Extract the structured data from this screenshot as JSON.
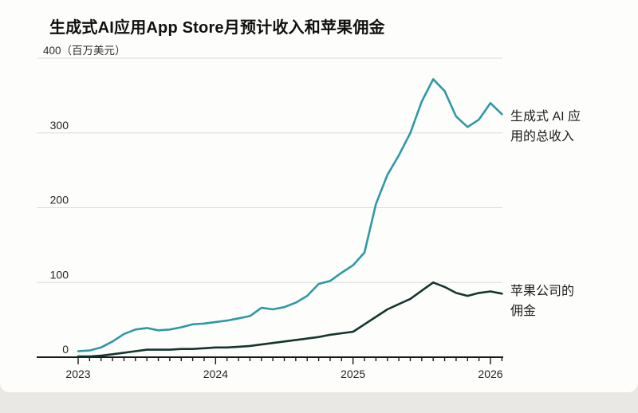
{
  "title": "生成式AI应用App Store月预计收入和苹果佣金",
  "y_axis_top_label": "400（百万美元）",
  "annotations": {
    "revenue_line1": "生成式 AI 应",
    "revenue_line2": "用的总收入",
    "commission_line1": "苹果公司的",
    "commission_line2": "佣金"
  },
  "colors": {
    "revenue": "#2f99a3",
    "commission": "#14352f",
    "grid": "#dcdcd9",
    "axis": "#191919",
    "tick_text": "#262626"
  },
  "chart_data": {
    "type": "line",
    "title": "生成式AI应用App Store月预计收入和苹果佣金",
    "unit": "百万美元",
    "ylim": [
      0,
      400
    ],
    "grid": true,
    "legend_position": "right-annotations",
    "y_gridlines": [
      100,
      200,
      300,
      400
    ],
    "y_tick_labels": [
      0,
      100,
      200,
      300
    ],
    "x": [
      "2023-01",
      "2023-02",
      "2023-03",
      "2023-04",
      "2023-05",
      "2023-06",
      "2023-07",
      "2023-08",
      "2023-09",
      "2023-10",
      "2023-11",
      "2023-12",
      "2024-01",
      "2024-02",
      "2024-03",
      "2024-04",
      "2024-05",
      "2024-06",
      "2024-07",
      "2024-08",
      "2024-09",
      "2024-10",
      "2024-11",
      "2024-12",
      "2025-01",
      "2025-02",
      "2025-03",
      "2025-04",
      "2025-05",
      "2025-06",
      "2025-07",
      "2025-08",
      "2025-09",
      "2025-10",
      "2025-11",
      "2025-12",
      "2026-01",
      "2026-02"
    ],
    "x_year_ticks": [
      {
        "label": "2023",
        "index": 0
      },
      {
        "label": "2024",
        "index": 12
      },
      {
        "label": "2025",
        "index": 24
      },
      {
        "label": "2026",
        "index": 36
      }
    ],
    "series": [
      {
        "key": "revenue",
        "name": "生成式 AI 应用的总收入",
        "color": "#2f99a3",
        "values": [
          8,
          9,
          13,
          21,
          31,
          37,
          39,
          36,
          37,
          40,
          44,
          45,
          47,
          49,
          52,
          55,
          66,
          64,
          67,
          73,
          82,
          98,
          102,
          113,
          123,
          140,
          205,
          244,
          270,
          300,
          342,
          372,
          356,
          322,
          308,
          318,
          340,
          325
        ]
      },
      {
        "key": "commission",
        "name": "苹果公司的佣金",
        "color": "#14352f",
        "values": [
          1,
          1,
          2,
          4,
          6,
          8,
          10,
          10,
          10,
          11,
          11,
          12,
          13,
          13,
          14,
          15,
          17,
          19,
          21,
          23,
          25,
          27,
          30,
          32,
          34,
          44,
          54,
          64,
          71,
          78,
          89,
          100,
          94,
          86,
          82,
          86,
          88,
          85
        ]
      }
    ]
  }
}
